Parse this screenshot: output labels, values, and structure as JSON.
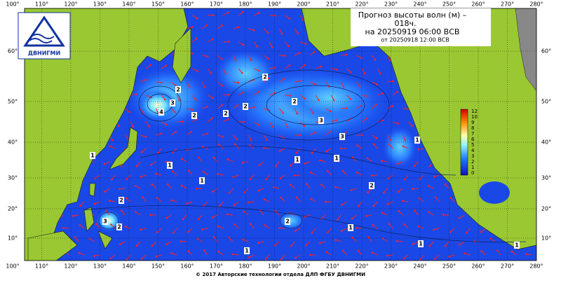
{
  "header": {
    "title": "Прогноз высоты волн (м) –",
    "lead": "018ч.",
    "valid": "на 20250919 06:00 ВСВ",
    "issued": "от 20250918 12:00 ВСВ"
  },
  "logo": "ДВНИГМИ",
  "map": {
    "longitude_labels": [
      "100°",
      "110°",
      "120°",
      "130°",
      "140°",
      "150°",
      "160°",
      "170°",
      "180°",
      "190°",
      "200°",
      "210°",
      "220°",
      "230°",
      "240°",
      "250°",
      "260°",
      "270°",
      "280°"
    ],
    "latitude_labels": [
      "60°",
      "50°",
      "40°",
      "30°",
      "20°",
      "10°"
    ],
    "colorbar_labels": [
      "12",
      "10",
      "9",
      "8",
      "7",
      "6",
      "5",
      "4",
      "3",
      "2",
      "1",
      "0"
    ],
    "contour_labels": [
      "2",
      "3",
      "4",
      "2",
      "2",
      "2",
      "2",
      "2",
      "3",
      "3",
      "2",
      "1",
      "1",
      "1",
      "1",
      "1",
      "2",
      "3",
      "2",
      "2",
      "1",
      "1",
      "1",
      "1",
      "1"
    ]
  },
  "footer": "© 2017 Авторские технологии отдела ДЛП ФГБУ ДВНИГМИ"
}
